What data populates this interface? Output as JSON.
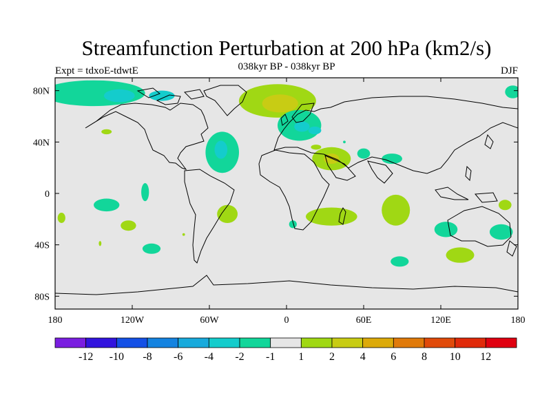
{
  "title": "Streamfunction Perturbation at 200 hPa (km2/s)",
  "subtitle": "038kyr BP - 038kyr BP",
  "left_label": "Expt = tdxoE-tdwtE",
  "right_label": "DJF",
  "chart_data": {
    "type": "heatmap",
    "projection": "cylindrical equidistant",
    "lon_range": [
      -180,
      180
    ],
    "lat_range": [
      -90,
      90
    ],
    "x_ticks": [
      {
        "value": -180,
        "label": "180"
      },
      {
        "value": -120,
        "label": "120W"
      },
      {
        "value": -60,
        "label": "60W"
      },
      {
        "value": 0,
        "label": "0"
      },
      {
        "value": 60,
        "label": "60E"
      },
      {
        "value": 120,
        "label": "120E"
      },
      {
        "value": 180,
        "label": "180"
      }
    ],
    "y_ticks": [
      {
        "value": 80,
        "label": "80N"
      },
      {
        "value": 40,
        "label": "40N"
      },
      {
        "value": 0,
        "label": "0"
      },
      {
        "value": -40,
        "label": "40S"
      },
      {
        "value": -80,
        "label": "80S"
      }
    ],
    "colorbar": {
      "colors": [
        "#7a1ee0",
        "#3214de",
        "#1450e6",
        "#1483e0",
        "#18aadc",
        "#14cccc",
        "#12d69a",
        "#e6e6e6",
        "#a0d814",
        "#c8cc14",
        "#dcaa0a",
        "#e07a0a",
        "#e04a0a",
        "#e02a0a",
        "#e00010"
      ],
      "labels": [
        "-12",
        "-10",
        "-8",
        "-6",
        "-4",
        "-2",
        "-1",
        "1",
        "2",
        "4",
        "6",
        "8",
        "10",
        "12"
      ]
    },
    "anomalies": [
      {
        "lon": -150,
        "lat": 78,
        "rx": 40,
        "ry": 10,
        "level": -2
      },
      {
        "lon": -130,
        "lat": 76,
        "rx": 12,
        "ry": 5,
        "level": -4
      },
      {
        "lon": -97,
        "lat": 76,
        "rx": 10,
        "ry": 4,
        "level": -4
      },
      {
        "lon": -140,
        "lat": 48,
        "rx": 4,
        "ry": 2,
        "level": 2
      },
      {
        "lon": -50,
        "lat": 32,
        "rx": 13,
        "ry": 16,
        "level": -2
      },
      {
        "lon": -51,
        "lat": 34,
        "rx": 5,
        "ry": 7,
        "level": -4
      },
      {
        "lon": -7,
        "lat": 72,
        "rx": 30,
        "ry": 13,
        "level": 2
      },
      {
        "lon": -5,
        "lat": 70,
        "rx": 14,
        "ry": 7,
        "level": 4
      },
      {
        "lon": 10,
        "lat": 53,
        "rx": 17,
        "ry": 12,
        "level": -2
      },
      {
        "lon": 12,
        "lat": 52,
        "rx": 6,
        "ry": 4,
        "level": -4
      },
      {
        "lon": 22,
        "lat": 49,
        "rx": 5,
        "ry": 3,
        "level": -4
      },
      {
        "lon": 35,
        "lat": 27,
        "rx": 15,
        "ry": 9,
        "level": 2
      },
      {
        "lon": 35,
        "lat": 27,
        "rx": 6,
        "ry": 4,
        "level": 4
      },
      {
        "lon": 60,
        "lat": 31,
        "rx": 5,
        "ry": 4,
        "level": -2
      },
      {
        "lon": -110,
        "lat": 1,
        "rx": 3,
        "ry": 7,
        "level": -2
      },
      {
        "lon": -140,
        "lat": -9,
        "rx": 10,
        "ry": 5,
        "level": -2
      },
      {
        "lon": -175,
        "lat": -19,
        "rx": 3,
        "ry": 4,
        "level": 2
      },
      {
        "lon": -123,
        "lat": -25,
        "rx": 6,
        "ry": 4,
        "level": 2
      },
      {
        "lon": -145,
        "lat": -39,
        "rx": 1,
        "ry": 2,
        "level": 2
      },
      {
        "lon": -105,
        "lat": -43,
        "rx": 7,
        "ry": 4,
        "level": -2
      },
      {
        "lon": -80,
        "lat": -32,
        "rx": 1,
        "ry": 1,
        "level": 2
      },
      {
        "lon": -46,
        "lat": -16,
        "rx": 8,
        "ry": 7,
        "level": 2
      },
      {
        "lon": 5,
        "lat": -24,
        "rx": 3,
        "ry": 3,
        "level": -2
      },
      {
        "lon": 35,
        "lat": -18,
        "rx": 20,
        "ry": 7,
        "level": 2
      },
      {
        "lon": 85,
        "lat": -13,
        "rx": 11,
        "ry": 12,
        "level": 2
      },
      {
        "lon": 88,
        "lat": -53,
        "rx": 7,
        "ry": 4,
        "level": -2
      },
      {
        "lon": 124,
        "lat": -28,
        "rx": 9,
        "ry": 6,
        "level": -2
      },
      {
        "lon": 167,
        "lat": -30,
        "rx": 9,
        "ry": 6,
        "level": -2
      },
      {
        "lon": 135,
        "lat": -48,
        "rx": 11,
        "ry": 6,
        "level": 2
      },
      {
        "lon": 170,
        "lat": -9,
        "rx": 5,
        "ry": 4,
        "level": 2
      },
      {
        "lon": 176,
        "lat": 79,
        "rx": 6,
        "ry": 5,
        "level": -2
      },
      {
        "lon": 45,
        "lat": 40,
        "rx": 1,
        "ry": 1,
        "level": -2
      },
      {
        "lon": 82,
        "lat": 27,
        "rx": 8,
        "ry": 4,
        "level": -2
      },
      {
        "lon": 23,
        "lat": 36,
        "rx": 4,
        "ry": 2,
        "level": 2
      }
    ]
  }
}
